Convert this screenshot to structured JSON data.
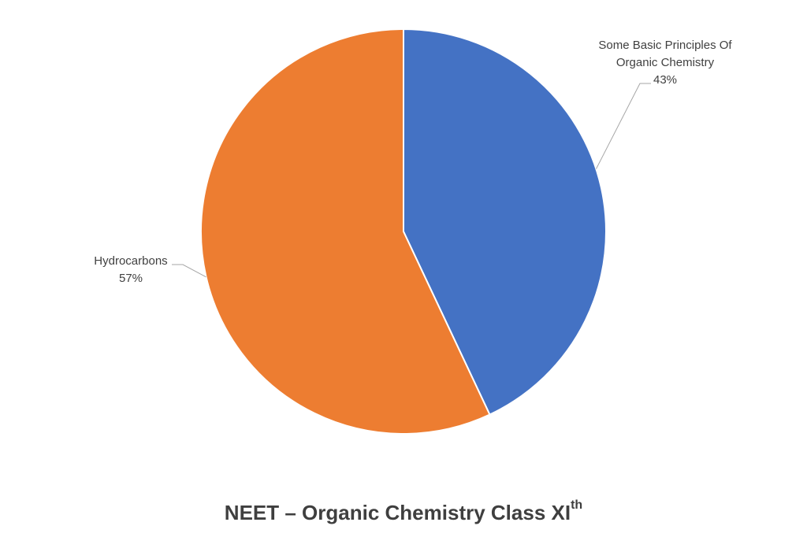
{
  "chart_data": {
    "type": "pie",
    "title": "NEET – Organic Chemistry Class XI",
    "title_superscript": "th",
    "slices": [
      {
        "label_lines": [
          "Some Basic Principles Of",
          "Organic Chemistry"
        ],
        "value": 43,
        "value_label": "43%",
        "color": "#4472c4"
      },
      {
        "label_lines": [
          "Hydrocarbons"
        ],
        "value": 57,
        "value_label": "57%",
        "color": "#ed7d31"
      }
    ],
    "start_angle_deg": 0,
    "direction": "clockwise",
    "slice_border_color": "#ffffff",
    "label_text_color": "#404040",
    "leader_line_color": "#a6a6a6"
  }
}
